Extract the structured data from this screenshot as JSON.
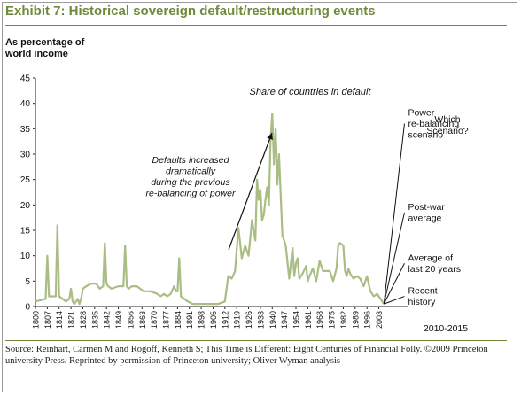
{
  "colors": {
    "accent": "#6e8a3a",
    "line": "#a9bd84",
    "axis": "#222222"
  },
  "chart_data": {
    "type": "line",
    "title": "Exhibit 7: Historical sovereign default/restructuring events",
    "ylabel": "As percentage of world income",
    "ylim": [
      0,
      45
    ],
    "yticks": [
      0,
      5,
      10,
      15,
      20,
      25,
      30,
      35,
      40,
      45
    ],
    "xlim": [
      1800,
      2020
    ],
    "xticks": [
      1800,
      1807,
      1814,
      1821,
      1828,
      1835,
      1842,
      1849,
      1856,
      1863,
      1870,
      1877,
      1884,
      1891,
      1898,
      1905,
      1912,
      1919,
      1926,
      1933,
      1940,
      1947,
      1954,
      1961,
      1968,
      1975,
      1982,
      1989,
      1996,
      2003
    ],
    "series": [
      {
        "name": "Share of countries in default",
        "x": [
          1800,
          1806,
          1807,
          1808,
          1809,
          1812,
          1813,
          1814,
          1818,
          1820,
          1821,
          1822,
          1823,
          1825,
          1826,
          1827,
          1828,
          1830,
          1833,
          1836,
          1838,
          1840,
          1841,
          1842,
          1843,
          1845,
          1849,
          1852,
          1853,
          1854,
          1855,
          1857,
          1860,
          1864,
          1868,
          1872,
          1874,
          1876,
          1878,
          1880,
          1882,
          1883,
          1884,
          1885,
          1886,
          1888,
          1890,
          1893,
          1896,
          1900,
          1905,
          1908,
          1912,
          1914,
          1916,
          1918,
          1920,
          1922,
          1924,
          1926,
          1928,
          1930,
          1931,
          1932,
          1933,
          1934,
          1935,
          1936,
          1937,
          1938,
          1939,
          1940,
          1941,
          1942,
          1943,
          1944,
          1945,
          1946,
          1948,
          1950,
          1952,
          1953,
          1954,
          1955,
          1956,
          1958,
          1960,
          1961,
          1962,
          1964,
          1966,
          1968,
          1970,
          1972,
          1974,
          1976,
          1978,
          1979,
          1980,
          1982,
          1983,
          1984,
          1985,
          1986,
          1988,
          1990,
          1992,
          1994,
          1996,
          1998,
          2000,
          2002,
          2004,
          2006
        ],
        "values": [
          1,
          1.5,
          10,
          2,
          2,
          2,
          16,
          2,
          1,
          1.5,
          3.5,
          1,
          0.5,
          1.5,
          0.5,
          1.5,
          3.5,
          4,
          4.5,
          4.5,
          3.5,
          4,
          12.5,
          4.5,
          4,
          3.5,
          4,
          4,
          12,
          4,
          3.5,
          4,
          4,
          3,
          3,
          2.5,
          2,
          2.5,
          2,
          2.5,
          4,
          3,
          3,
          9.5,
          2,
          1.5,
          1,
          0.5,
          0.5,
          0.5,
          0.5,
          0.5,
          1,
          6,
          5.5,
          7,
          15.5,
          9.5,
          12,
          10,
          17,
          13,
          25,
          21,
          23,
          17,
          18,
          21,
          23.5,
          20,
          33,
          38,
          28,
          35,
          24,
          30,
          22,
          14,
          12,
          5.5,
          11.5,
          6,
          8.5,
          9.5,
          5.5,
          6.5,
          8,
          5,
          6,
          7.5,
          5,
          9,
          7,
          7,
          7,
          5,
          7.5,
          12,
          12.5,
          12,
          7,
          6,
          7.5,
          6.5,
          5.5,
          6,
          5.5,
          4,
          6,
          3,
          2,
          2.5,
          1.5,
          0.5
        ]
      }
    ],
    "scenario_range": [
      2010,
      2015
    ],
    "scenario_x_label": "2010-2015",
    "scenario_heading": "Which Scenario?",
    "scenarios": [
      {
        "label": "Power re-balancing scenario",
        "value": 36
      },
      {
        "label": "Post-war average",
        "value": 18.5
      },
      {
        "label": "Average of last 20 years",
        "value": 8.5
      },
      {
        "label": "Recent history",
        "value": 2
      }
    ],
    "annotations": {
      "series_label": "Share of countries in default",
      "defaults_note": "Defaults increased dramatically during the previous re-balancing of power"
    }
  },
  "source_text": "Source: Reinhart, Carmen M and Rogoff, Kenneth S; This Time is Different: Eight Centuries of Financial Folly. ©2009 Princeton university Press. Reprinted by permission of Princeton university; Oliver Wyman analysis"
}
